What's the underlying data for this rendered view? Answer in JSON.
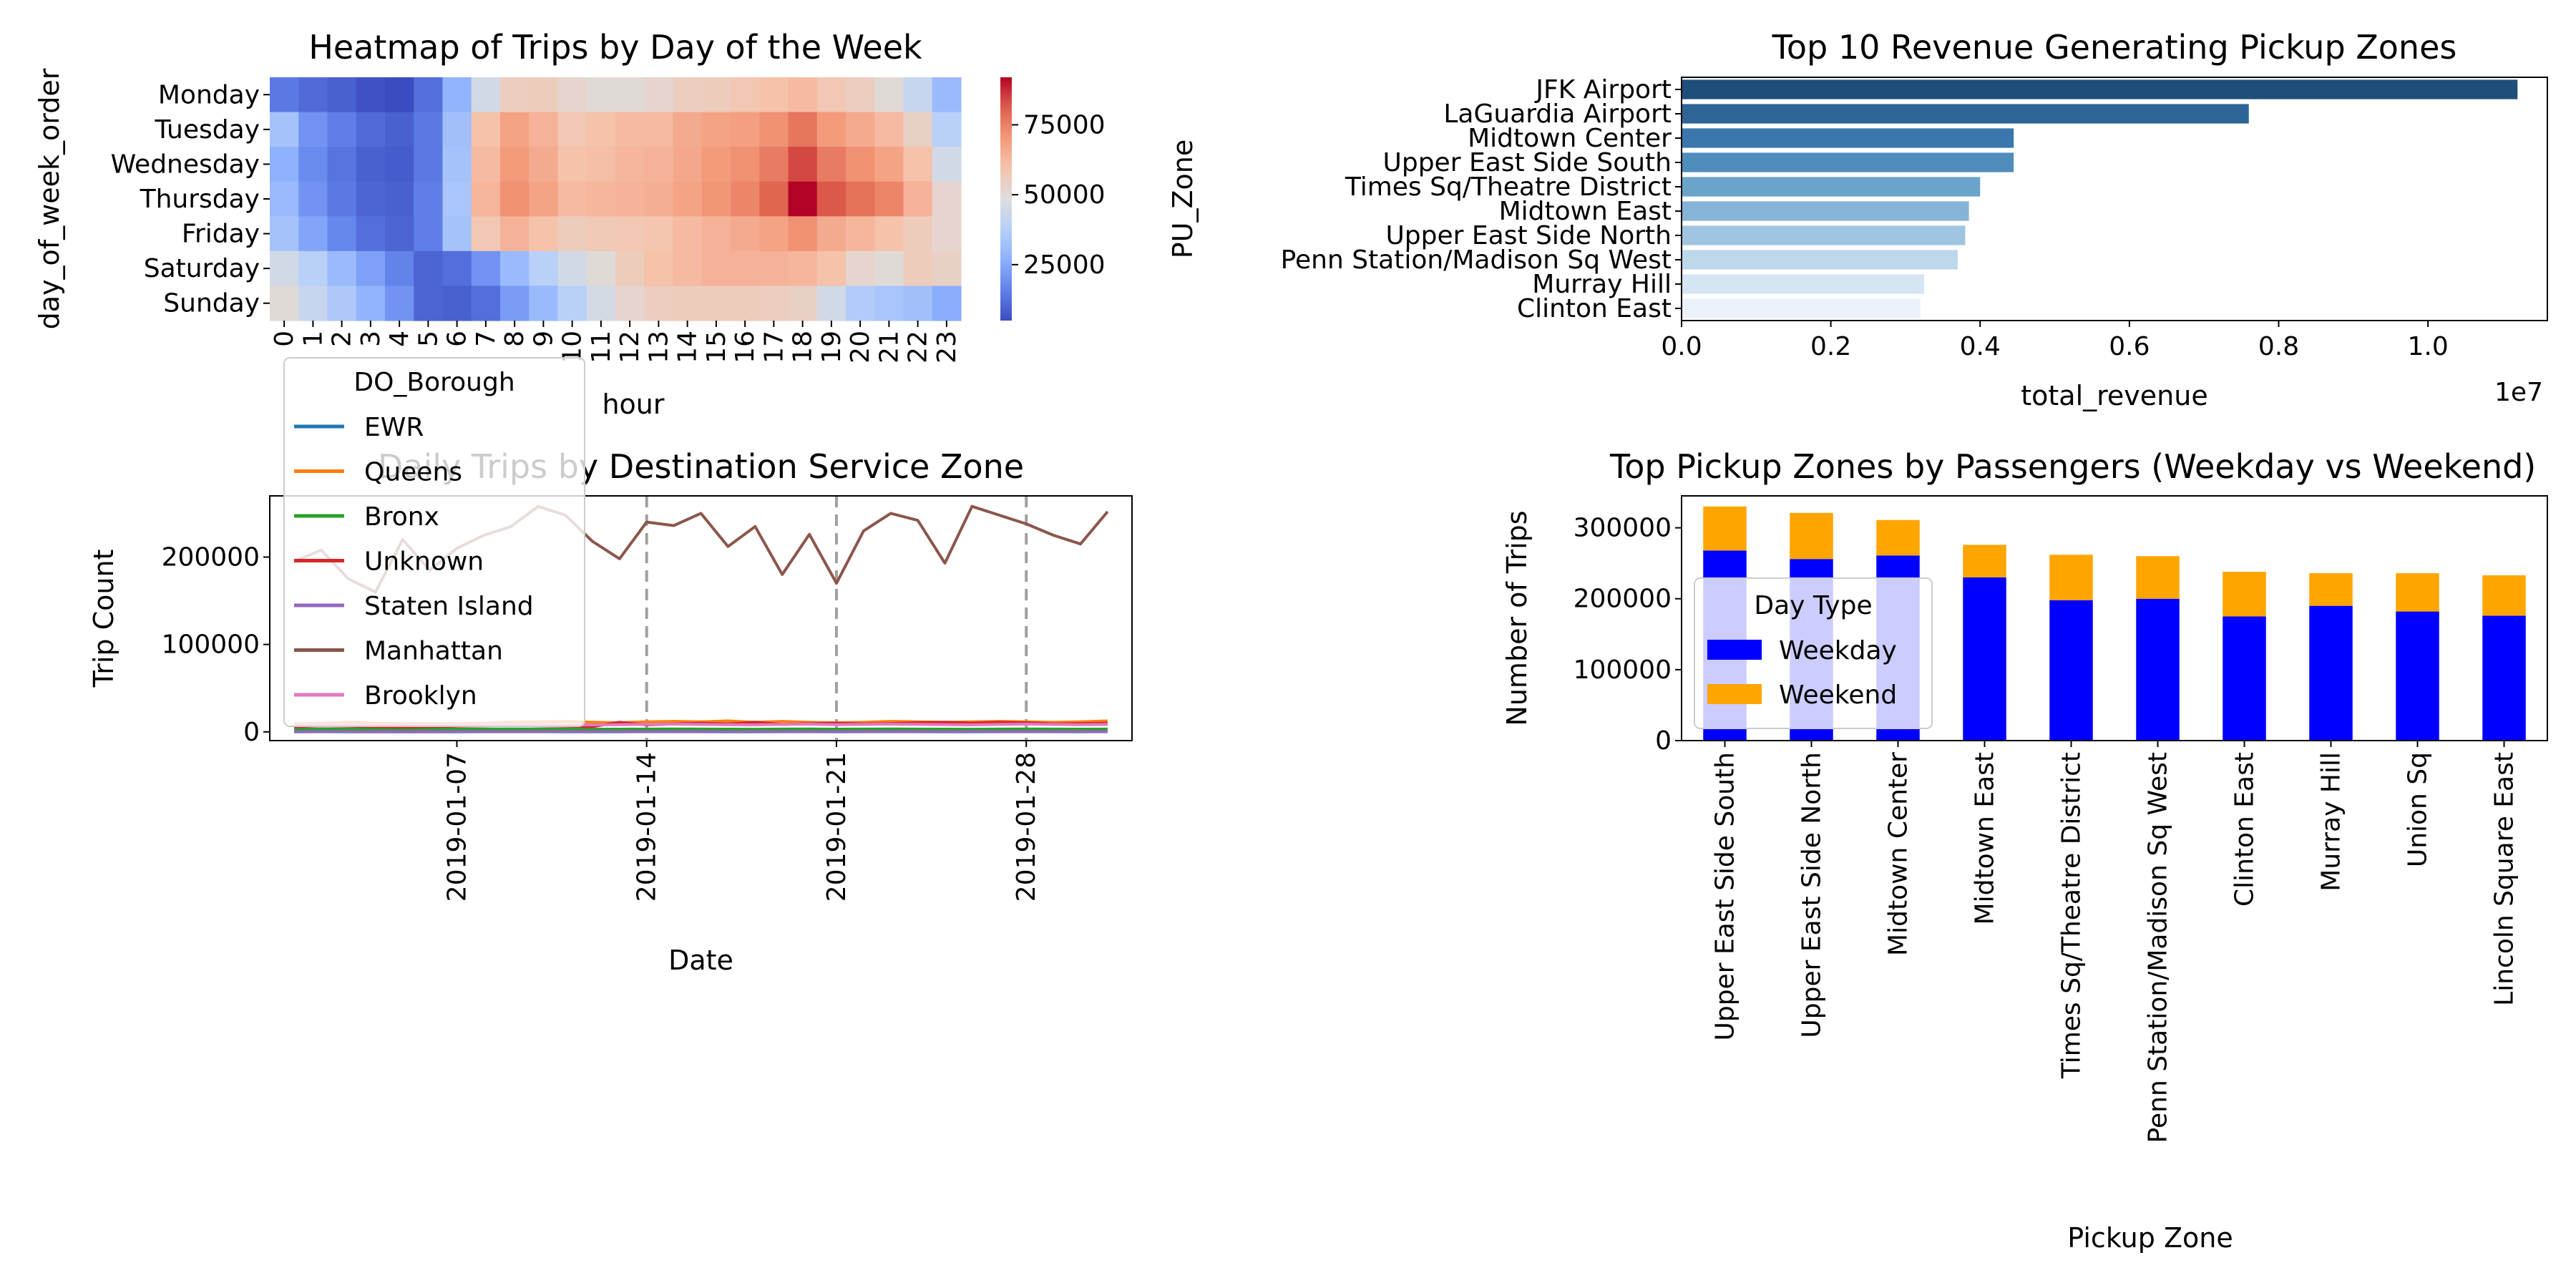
{
  "chart_data": [
    {
      "type": "heatmap",
      "title": "Heatmap of Trips by Day of the Week",
      "xlabel": "hour",
      "ylabel": "day_of_week_order",
      "x_categories": [
        "0",
        "1",
        "2",
        "3",
        "4",
        "5",
        "6",
        "7",
        "8",
        "9",
        "10",
        "11",
        "12",
        "13",
        "14",
        "15",
        "16",
        "17",
        "18",
        "19",
        "20",
        "21",
        "22",
        "23"
      ],
      "y_categories": [
        "Monday",
        "Tuesday",
        "Wednesday",
        "Thursday",
        "Friday",
        "Saturday",
        "Sunday"
      ],
      "values": [
        [
          14000,
          11000,
          9000,
          6000,
          5000,
          12000,
          28000,
          45000,
          55000,
          56000,
          52000,
          50000,
          50000,
          52000,
          55000,
          56000,
          58000,
          60000,
          62000,
          58000,
          55000,
          50000,
          42000,
          30000
        ],
        [
          33000,
          20000,
          15000,
          11000,
          9000,
          14000,
          32000,
          60000,
          68000,
          64000,
          58000,
          60000,
          62000,
          62000,
          66000,
          68000,
          69000,
          72000,
          77000,
          70000,
          66000,
          62000,
          54000,
          38000
        ],
        [
          27000,
          18000,
          13000,
          9000,
          8000,
          14000,
          33000,
          62000,
          70000,
          66000,
          60000,
          61000,
          63000,
          64000,
          67000,
          70000,
          72000,
          76000,
          84000,
          76000,
          72000,
          68000,
          60000,
          45000
        ],
        [
          30000,
          20000,
          14000,
          10000,
          9000,
          15000,
          34000,
          63000,
          72000,
          68000,
          62000,
          63000,
          64000,
          65000,
          68000,
          71000,
          74000,
          80000,
          92000,
          82000,
          78000,
          74000,
          64000,
          52000
        ],
        [
          33000,
          24000,
          17000,
          12000,
          10000,
          15000,
          33000,
          58000,
          64000,
          60000,
          56000,
          57000,
          58000,
          59000,
          62000,
          64000,
          66000,
          68000,
          72000,
          66000,
          63000,
          60000,
          56000,
          52000
        ],
        [
          45000,
          38000,
          30000,
          23000,
          16000,
          10000,
          12000,
          20000,
          30000,
          38000,
          45000,
          50000,
          56000,
          60000,
          62000,
          64000,
          64000,
          64000,
          63000,
          60000,
          52000,
          50000,
          56000,
          54000
        ],
        [
          50000,
          42000,
          35000,
          28000,
          20000,
          10000,
          9000,
          12000,
          22000,
          30000,
          38000,
          46000,
          52000,
          55000,
          56000,
          56000,
          56000,
          55000,
          54000,
          45000,
          36000,
          34000,
          32000,
          26000
        ]
      ],
      "colorbar_ticks": [
        25000,
        50000,
        75000
      ],
      "vmin": 5000,
      "vmax": 92000,
      "colormap": "coolwarm"
    },
    {
      "type": "bar",
      "orientation": "horizontal",
      "title": "Top 10 Revenue Generating Pickup Zones",
      "xlabel": "total_revenue",
      "ylabel": "PU_Zone",
      "offset_text": "1e7",
      "categories": [
        "JFK Airport",
        "LaGuardia Airport",
        "Midtown Center",
        "Upper East Side South",
        "Times Sq/Theatre District",
        "Midtown East",
        "Upper East Side North",
        "Penn Station/Madison Sq West",
        "Murray Hill",
        "Clinton East"
      ],
      "values": [
        11200000,
        7600000,
        4450000,
        4450000,
        4000000,
        3850000,
        3800000,
        3700000,
        3250000,
        3200000
      ],
      "xlim": [
        0,
        11600000
      ],
      "xticks": [
        0,
        2000000,
        4000000,
        6000000,
        8000000,
        10000000
      ],
      "xtick_labels": [
        "0.0",
        "0.2",
        "0.4",
        "0.6",
        "0.8",
        "1.0"
      ],
      "colors": [
        "#1f4e7a",
        "#2f6498",
        "#3b77ad",
        "#4f8dbc",
        "#6ba3cb",
        "#86b4d6",
        "#a0c5e0",
        "#bdd7eb",
        "#d5e5f3",
        "#ebf2fa"
      ]
    },
    {
      "type": "line",
      "title": "Daily Trips by Destination Service Zone",
      "xlabel": "Date",
      "ylabel": "Trip Count",
      "x_start_date": "2019-01-01",
      "x_tick_labels": [
        "2019-01-07",
        "2019-01-14",
        "2019-01-21",
        "2019-01-28"
      ],
      "vlines": [
        "2019-01-14",
        "2019-01-21",
        "2019-01-28"
      ],
      "ylim": [
        -10000,
        270000
      ],
      "yticks": [
        0,
        100000,
        200000
      ],
      "legend_title": "DO_Borough",
      "legend_position": "upper-left",
      "series": [
        {
          "name": "EWR",
          "color": "#1f77b4",
          "values": [
            100,
            120,
            110,
            100,
            90,
            100,
            110,
            120,
            130,
            120,
            110,
            100,
            110,
            120,
            130,
            120,
            110,
            100,
            120,
            130,
            110,
            120,
            130,
            120,
            110,
            100,
            120,
            130,
            120,
            110,
            120
          ]
        },
        {
          "name": "Queens",
          "color": "#ff7f0e",
          "values": [
            9000,
            10000,
            11000,
            10000,
            9500,
            9000,
            9500,
            10000,
            11000,
            11500,
            12000,
            11000,
            10500,
            11500,
            12000,
            11500,
            12500,
            11000,
            12000,
            11000,
            10500,
            11000,
            12000,
            11500,
            11000,
            11500,
            12000,
            11500,
            11000,
            11500,
            12500
          ]
        },
        {
          "name": "Bronx",
          "color": "#2ca02c",
          "values": [
            3000,
            3200,
            3100,
            3000,
            2900,
            3000,
            3100,
            3200,
            3300,
            3200,
            3100,
            3000,
            3100,
            3200,
            3300,
            3200,
            3100,
            3000,
            3200,
            3300,
            3100,
            3200,
            3300,
            3200,
            3100,
            3000,
            3200,
            3300,
            3200,
            3100,
            3200
          ]
        },
        {
          "name": "Unknown",
          "color": "#d62728",
          "values": [
            6000,
            7000,
            6500,
            6000,
            5500,
            6000,
            6500,
            7000,
            7500,
            7000,
            6500,
            6000,
            11000,
            8000,
            9000,
            10000,
            9000,
            11000,
            8500,
            9500,
            10000,
            9000,
            9500,
            10500,
            11000,
            10000,
            11000,
            10500,
            9000,
            9500,
            10000
          ]
        },
        {
          "name": "Staten Island",
          "color": "#9467bd",
          "values": [
            200,
            250,
            220,
            200,
            180,
            200,
            220,
            250,
            260,
            240,
            220,
            200,
            220,
            240,
            260,
            240,
            220,
            200,
            240,
            260,
            220,
            240,
            260,
            240,
            220,
            200,
            240,
            260,
            240,
            220,
            240
          ]
        },
        {
          "name": "Manhattan",
          "color": "#8c564b",
          "values": [
            195000,
            208000,
            175000,
            160000,
            220000,
            185000,
            210000,
            225000,
            235000,
            258000,
            248000,
            218000,
            198000,
            240000,
            236000,
            250000,
            212000,
            235000,
            180000,
            226000,
            170000,
            230000,
            250000,
            242000,
            193000,
            258000,
            248000,
            238000,
            225000,
            215000,
            252000
          ]
        },
        {
          "name": "Brooklyn",
          "color": "#e377c2",
          "values": [
            8000,
            8500,
            8200,
            8000,
            7800,
            8000,
            8200,
            8500,
            8800,
            8500,
            8200,
            8000,
            8200,
            8500,
            8800,
            8500,
            8200,
            8000,
            8500,
            8800,
            8200,
            8500,
            8800,
            8500,
            8200,
            8000,
            8500,
            8800,
            8500,
            8200,
            8500
          ]
        }
      ]
    },
    {
      "type": "bar",
      "stacked": true,
      "title": "Top Pickup Zones by Passengers (Weekday vs Weekend)",
      "xlabel": "Pickup Zone",
      "ylabel": "Number of Trips",
      "categories": [
        "Upper East Side South",
        "Upper East Side North",
        "Midtown Center",
        "Midtown East",
        "Times Sq/Theatre District",
        "Penn Station/Madison Sq West",
        "Clinton East",
        "Murray Hill",
        "Union Sq",
        "Lincoln Square East"
      ],
      "ylim": [
        0,
        345000
      ],
      "yticks": [
        0,
        100000,
        200000,
        300000
      ],
      "legend_title": "Day Type",
      "legend_position": "center-left",
      "series": [
        {
          "name": "Weekday",
          "color": "#0000ff",
          "values": [
            268000,
            256000,
            261000,
            230000,
            198000,
            200000,
            175000,
            190000,
            182000,
            176000
          ]
        },
        {
          "name": "Weekend",
          "color": "#ffa500",
          "values": [
            62000,
            65000,
            50000,
            46000,
            64000,
            60000,
            63000,
            46000,
            54000,
            57000
          ]
        }
      ]
    }
  ]
}
